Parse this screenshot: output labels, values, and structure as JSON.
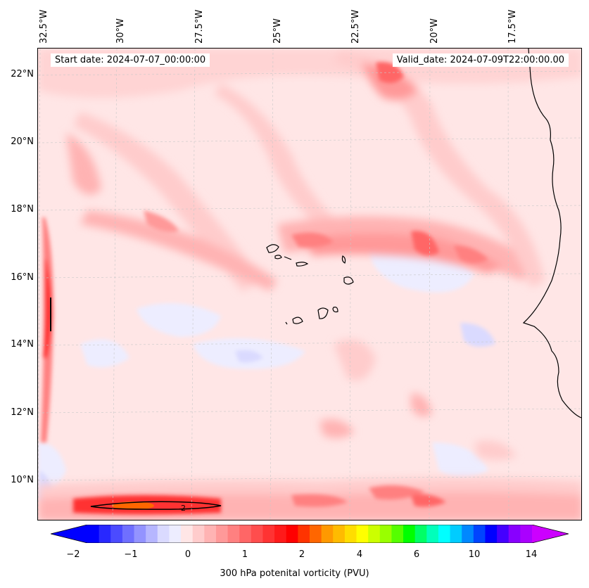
{
  "map": {
    "start_date": "Start date: 2024-07-07_00:00:00",
    "valid_date": "Valid_date: 2024-07-09T22:00:00.00",
    "lon_labels": [
      "32.5°W",
      "30°W",
      "27.5°W",
      "25°W",
      "22.5°W",
      "20°W",
      "17.5°W"
    ],
    "lat_labels": [
      "22°N",
      "20°N",
      "18°N",
      "16°N",
      "14°N",
      "12°N",
      "10°N"
    ],
    "contour_label": "2",
    "gridlines": true,
    "region": "Eastern tropical North Atlantic, Cape Verde islands and West African coast"
  },
  "colorbar": {
    "label": "300 hPa potenital vorticity (PVU)",
    "ticks": [
      "−2",
      "−1",
      "0",
      "1",
      "2",
      "4",
      "6",
      "10",
      "14"
    ],
    "colors": [
      "#0000ff",
      "#2828ff",
      "#4b4bff",
      "#6f6fff",
      "#9393ff",
      "#b6b6ff",
      "#dadaff",
      "#ededff",
      "#ffe6e6",
      "#ffcccc",
      "#ffb3b3",
      "#ff9999",
      "#ff8080",
      "#ff6666",
      "#ff4d4d",
      "#ff3333",
      "#ff1a1a",
      "#ff0000",
      "#ff3300",
      "#ff6600",
      "#ff9900",
      "#ffbb00",
      "#ffdd00",
      "#ffff00",
      "#ccff00",
      "#99ff00",
      "#55ff00",
      "#00ff00",
      "#00ff66",
      "#00ffbb",
      "#00ffff",
      "#00ccff",
      "#0088ff",
      "#0044ff",
      "#0000ff",
      "#4400ff",
      "#8800ff",
      "#aa00ff"
    ],
    "extend_low_color": "#0000ff",
    "extend_high_color": "#cc00ff"
  }
}
